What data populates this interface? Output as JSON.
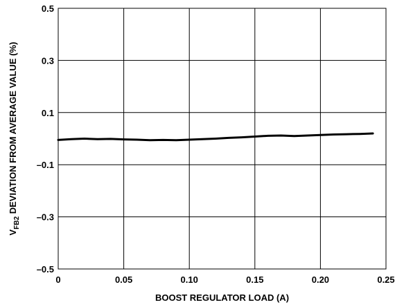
{
  "chart_data": {
    "type": "line",
    "title": "",
    "xlabel": "BOOST REGULATOR LOAD (A)",
    "ylabel": {
      "prefix": "V",
      "subscript": "FB2",
      "suffix": " DEVIATION FROM AVERAGE VALUE (%)"
    },
    "xlim": [
      0,
      0.25
    ],
    "ylim": [
      -0.5,
      0.5
    ],
    "x_ticks": [
      0,
      0.05,
      0.1,
      0.15,
      0.2,
      0.25
    ],
    "x_tick_labels": [
      "0",
      "0.05",
      "0.10",
      "0.15",
      "0.20",
      "0.25"
    ],
    "y_ticks": [
      -0.5,
      -0.3,
      -0.1,
      0.1,
      0.3,
      0.5
    ],
    "y_tick_labels": [
      "–0.5",
      "–0.3",
      "–0.1",
      "0.1",
      "0.3",
      "0.5"
    ],
    "grid": true,
    "legend": "none",
    "series": [
      {
        "color": "#000000",
        "x": [
          0,
          0.01,
          0.02,
          0.03,
          0.04,
          0.05,
          0.06,
          0.07,
          0.08,
          0.09,
          0.1,
          0.11,
          0.12,
          0.13,
          0.14,
          0.15,
          0.16,
          0.17,
          0.18,
          0.19,
          0.2,
          0.21,
          0.22,
          0.23,
          0.24
        ],
        "y": [
          -0.005,
          -0.002,
          0.0,
          -0.002,
          -0.001,
          -0.003,
          -0.004,
          -0.006,
          -0.005,
          -0.006,
          -0.004,
          -0.002,
          0.0,
          0.003,
          0.005,
          0.008,
          0.011,
          0.012,
          0.01,
          0.012,
          0.014,
          0.016,
          0.017,
          0.018,
          0.02
        ]
      }
    ]
  }
}
